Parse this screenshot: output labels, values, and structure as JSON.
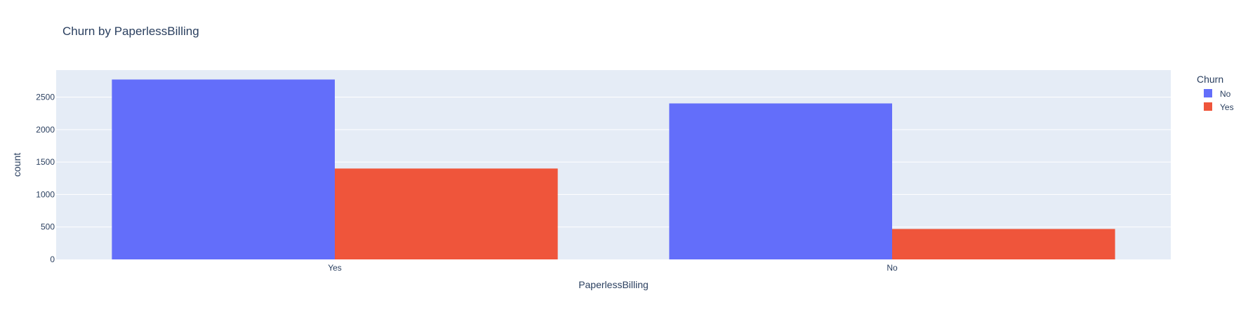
{
  "chart_data": {
    "type": "bar",
    "title": "Churn by PaperlessBilling",
    "xlabel": "PaperlessBilling",
    "ylabel": "count",
    "categories": [
      "Yes",
      "No"
    ],
    "series": [
      {
        "name": "No",
        "values": [
          2771,
          2403
        ],
        "color": "#636efa"
      },
      {
        "name": "Yes",
        "values": [
          1400,
          469
        ],
        "color": "#ef553b"
      }
    ],
    "ylim": [
      0,
      2916
    ],
    "yticks": [
      0,
      500,
      1000,
      1500,
      2000,
      2500
    ],
    "grid": true,
    "legend": {
      "title": "Churn",
      "position": "top-right"
    }
  }
}
